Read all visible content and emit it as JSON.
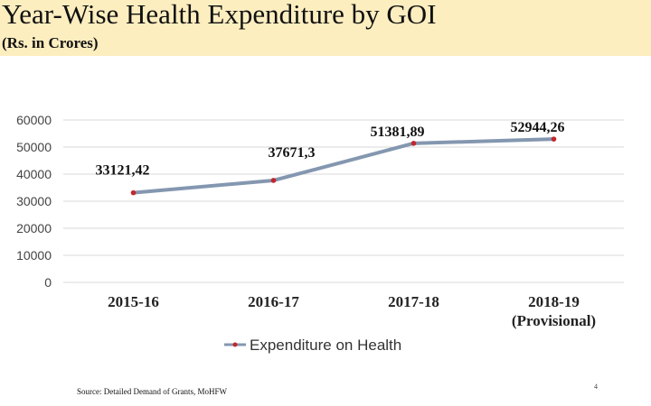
{
  "header": {
    "title": "Year-Wise Health Expenditure by GOI",
    "subtitle": "(Rs. in Crores)"
  },
  "chart_data": {
    "type": "line",
    "categories": [
      "2015-16",
      "2016-17",
      "2017-18",
      "2018-19"
    ],
    "category_notes": [
      "",
      "",
      "",
      "(Provisional)"
    ],
    "series": [
      {
        "name": "Expenditure on Health",
        "values": [
          33121.42,
          37671.3,
          51381.89,
          52944.26
        ],
        "labels": [
          "33121,42",
          "37671,3",
          "51381,89",
          "52944,26"
        ],
        "color": "#8497b0",
        "marker_color": "#c0282d"
      }
    ],
    "yticks": [
      "0",
      "10000",
      "20000",
      "30000",
      "40000",
      "50000",
      "60000"
    ],
    "ylim": [
      0,
      60000
    ],
    "grid": true,
    "legend_position": "bottom"
  },
  "footer": {
    "source": "Source: Detailed Demand of Grants, MoHFW",
    "page_number": "4"
  }
}
